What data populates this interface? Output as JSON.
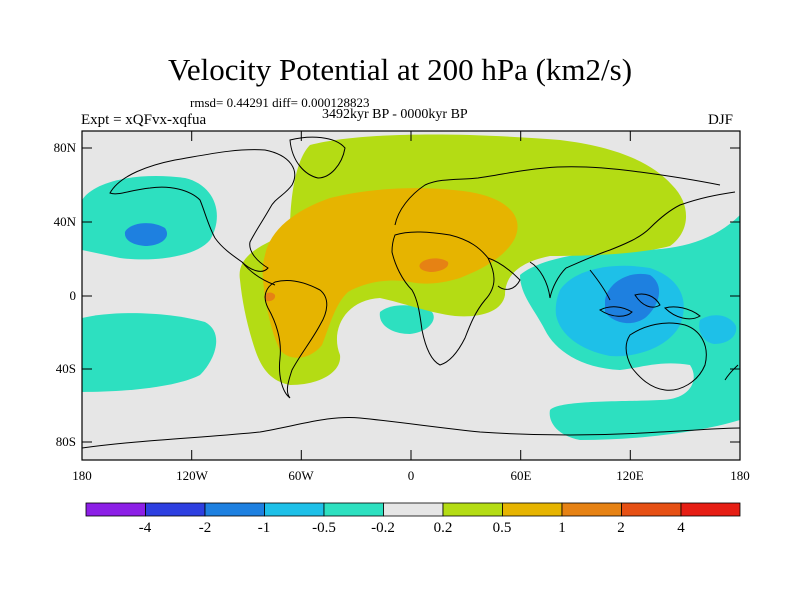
{
  "title": "Velocity Potential at 200 hPa (km2/s)",
  "stats": "rmsd= 0.44291 diff= 0.000128823",
  "period": "3492kyr BP - 0000kyr BP",
  "experiment": "Expt = xQFvx-xqfua",
  "season": "DJF",
  "axes": {
    "lat_labels": [
      "80N",
      "40N",
      "0",
      "40S",
      "80S"
    ],
    "lon_labels": [
      "180",
      "120W",
      "60W",
      "0",
      "60E",
      "120E",
      "180"
    ]
  },
  "colorbar": {
    "labels": [
      "-4",
      "-2",
      "-1",
      "-0.5",
      "-0.2",
      "0.2",
      "0.5",
      "1",
      "2",
      "4"
    ],
    "colors": [
      "#8c1fe6",
      "#2d3fe0",
      "#1e80e0",
      "#1ec0e8",
      "#2de0c0",
      "#e6e6e6",
      "#b4dc14",
      "#e6b400",
      "#e68214",
      "#e65014",
      "#e61e14"
    ]
  },
  "field_colors": {
    "neutral": "#e6e6e6",
    "pos_weak": "#b4dc14",
    "pos_mid": "#e6b400",
    "pos_strong": "#e68214",
    "neg_weak": "#2de0c0",
    "neg_mid": "#1ec0e8",
    "neg_strong": "#1e80e0"
  }
}
